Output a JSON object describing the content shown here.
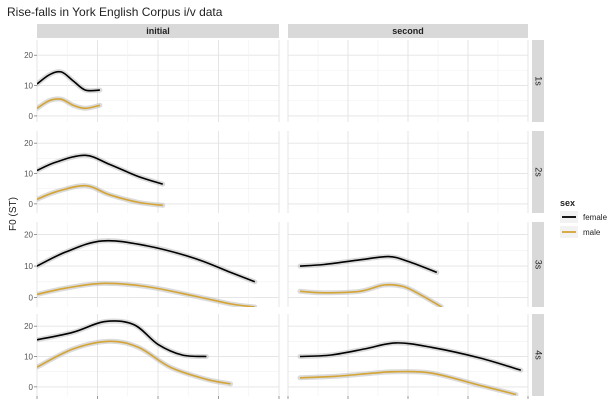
{
  "chart_data": {
    "type": "line",
    "title": "Rise-falls in York English Corpus i/v data",
    "ylabel": "F0 (ST)",
    "xlabel": "",
    "columns": [
      "initial",
      "second"
    ],
    "rows": [
      "1s",
      "2s",
      "3s",
      "4s"
    ],
    "yticks": [
      "20",
      "10",
      "0"
    ],
    "ylim_by_row": {
      "1s": [
        -2,
        25
      ],
      "2s": [
        -3,
        24
      ],
      "3s": [
        -3,
        24
      ],
      "4s": [
        -3,
        24
      ]
    },
    "xlim": [
      0,
      1
    ],
    "grid": true,
    "legend": {
      "title": "sex",
      "position": "right",
      "entries": [
        {
          "name": "female",
          "color": "#000000"
        },
        {
          "name": "male",
          "color": "#D4A435"
        }
      ]
    },
    "series": [
      {
        "name": "female",
        "row": "1s",
        "col": "initial",
        "x": [
          0.0,
          0.05,
          0.1,
          0.15,
          0.2,
          0.26
        ],
        "y": [
          10.5,
          13.5,
          14.5,
          11.5,
          8.5,
          8.5
        ]
      },
      {
        "name": "male",
        "row": "1s",
        "col": "initial",
        "x": [
          0.0,
          0.05,
          0.1,
          0.15,
          0.2,
          0.26
        ],
        "y": [
          2.5,
          5.0,
          5.5,
          3.5,
          2.5,
          3.5
        ]
      },
      {
        "name": "female",
        "row": "2s",
        "col": "initial",
        "x": [
          0.0,
          0.08,
          0.2,
          0.3,
          0.42,
          0.52
        ],
        "y": [
          11.0,
          13.8,
          16.0,
          13.0,
          9.0,
          6.5
        ]
      },
      {
        "name": "male",
        "row": "2s",
        "col": "initial",
        "x": [
          0.0,
          0.08,
          0.2,
          0.3,
          0.42,
          0.52
        ],
        "y": [
          1.5,
          4.0,
          6.0,
          3.0,
          0.5,
          -0.5
        ]
      },
      {
        "name": "female",
        "row": "3s",
        "col": "initial",
        "x": [
          0.0,
          0.12,
          0.27,
          0.45,
          0.65,
          0.8,
          0.9
        ],
        "y": [
          10.0,
          14.5,
          18.0,
          16.5,
          12.5,
          8.0,
          5.0
        ]
      },
      {
        "name": "male",
        "row": "3s",
        "col": "initial",
        "x": [
          0.0,
          0.12,
          0.27,
          0.45,
          0.65,
          0.8,
          0.9
        ],
        "y": [
          1.0,
          3.0,
          4.5,
          3.5,
          0.5,
          -2.0,
          -3.0
        ]
      },
      {
        "name": "female",
        "row": "4s",
        "col": "initial",
        "x": [
          0.0,
          0.15,
          0.28,
          0.4,
          0.5,
          0.6,
          0.7
        ],
        "y": [
          15.5,
          18.0,
          21.5,
          20.5,
          14.0,
          10.5,
          10.0
        ]
      },
      {
        "name": "male",
        "row": "4s",
        "col": "initial",
        "x": [
          0.0,
          0.15,
          0.3,
          0.42,
          0.55,
          0.7,
          0.8
        ],
        "y": [
          6.5,
          12.5,
          15.0,
          13.0,
          6.5,
          2.5,
          1.0
        ]
      },
      {
        "name": "female",
        "row": "3s",
        "col": "second",
        "x": [
          0.05,
          0.15,
          0.3,
          0.42,
          0.5,
          0.62
        ],
        "y": [
          10.0,
          10.5,
          12.0,
          13.0,
          11.5,
          8.0
        ]
      },
      {
        "name": "male",
        "row": "3s",
        "col": "second",
        "x": [
          0.05,
          0.15,
          0.3,
          0.4,
          0.48,
          0.55,
          0.64
        ],
        "y": [
          2.0,
          1.5,
          2.0,
          4.0,
          3.5,
          1.0,
          -3.0
        ]
      },
      {
        "name": "female",
        "row": "4s",
        "col": "second",
        "x": [
          0.05,
          0.18,
          0.32,
          0.45,
          0.6,
          0.8,
          0.97
        ],
        "y": [
          10.0,
          10.5,
          12.5,
          14.5,
          13.0,
          9.5,
          5.5
        ]
      },
      {
        "name": "male",
        "row": "4s",
        "col": "second",
        "x": [
          0.05,
          0.2,
          0.35,
          0.45,
          0.6,
          0.8,
          0.95
        ],
        "y": [
          3.0,
          3.5,
          4.5,
          5.0,
          4.5,
          0.5,
          -2.5
        ]
      }
    ]
  }
}
